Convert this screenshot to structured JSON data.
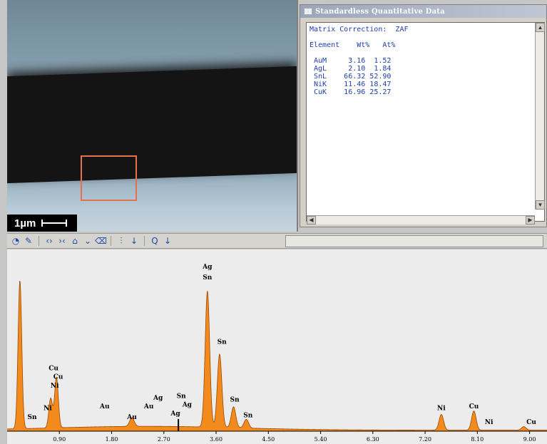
{
  "sem": {
    "scale_label": "1µm"
  },
  "quant": {
    "title": "Standardless Quantitative Data",
    "matrix_label": "Matrix Correction:",
    "matrix_value": "ZAF",
    "col_element": "Element",
    "col_wt": "Wt%",
    "col_at": "At%",
    "rows": [
      {
        "element": "AuM",
        "wt": "3.16",
        "at": "1.52"
      },
      {
        "element": "AgL",
        "wt": "2.10",
        "at": "1.84"
      },
      {
        "element": "SnL",
        "wt": "66.32",
        "at": "52.90"
      },
      {
        "element": "NiK",
        "wt": "11.46",
        "at": "18.47"
      },
      {
        "element": "CuK",
        "wt": "16.96",
        "at": "25.27"
      }
    ]
  },
  "toolbar": {
    "icons": [
      "acquire-icon",
      "brush-icon",
      "expand-icon",
      "contract-icon",
      "peak-up-icon",
      "peak-down-icon",
      "clear-icon",
      "marker-icon",
      "arrow-down-icon",
      "zoom-icon",
      "arrow-down-icon"
    ]
  },
  "chart_data": {
    "type": "area",
    "xlabel": "",
    "ylabel": "",
    "xlim": [
      0,
      9.3
    ],
    "x_ticks": [
      "0.90",
      "1.80",
      "2.70",
      "3.60",
      "4.50",
      "5.40",
      "6.30",
      "7.20",
      "8.10",
      "9.00"
    ],
    "x_tick_values": [
      0.9,
      1.8,
      2.7,
      3.6,
      4.5,
      5.4,
      6.3,
      7.2,
      8.1,
      9.0
    ],
    "peaks": [
      {
        "x": 0.22,
        "height": 0.85
      },
      {
        "x": 0.75,
        "height": 0.17
      },
      {
        "x": 0.85,
        "height": 0.29
      },
      {
        "x": 2.15,
        "height": 0.05
      },
      {
        "x": 3.45,
        "height": 0.78
      },
      {
        "x": 3.66,
        "height": 0.42
      },
      {
        "x": 3.9,
        "height": 0.12
      },
      {
        "x": 4.12,
        "height": 0.05
      },
      {
        "x": 7.48,
        "height": 0.09
      },
      {
        "x": 8.04,
        "height": 0.11
      },
      {
        "x": 8.9,
        "height": 0.02
      }
    ],
    "labels": [
      {
        "text": "Ag",
        "x": 3.45,
        "height": 0.93
      },
      {
        "text": "Sn",
        "x": 3.45,
        "height": 0.87
      },
      {
        "text": "Sn",
        "x": 3.7,
        "height": 0.5
      },
      {
        "text": "Sn",
        "x": 3.92,
        "height": 0.17
      },
      {
        "text": "Sn",
        "x": 4.15,
        "height": 0.08
      },
      {
        "text": "Cu",
        "x": 0.8,
        "height": 0.35
      },
      {
        "text": "Cu",
        "x": 0.88,
        "height": 0.3
      },
      {
        "text": "Ni",
        "x": 0.82,
        "height": 0.25
      },
      {
        "text": "Ni",
        "x": 0.7,
        "height": 0.12
      },
      {
        "text": "Sn",
        "x": 0.43,
        "height": 0.07
      },
      {
        "text": "Au",
        "x": 1.68,
        "height": 0.13
      },
      {
        "text": "Au",
        "x": 2.15,
        "height": 0.07
      },
      {
        "text": "Au",
        "x": 2.44,
        "height": 0.13
      },
      {
        "text": "Ag",
        "x": 2.6,
        "height": 0.18
      },
      {
        "text": "Sn",
        "x": 3.0,
        "height": 0.19
      },
      {
        "text": "Ag",
        "x": 3.1,
        "height": 0.14
      },
      {
        "text": "Ag",
        "x": 2.9,
        "height": 0.09
      },
      {
        "text": "Ni",
        "x": 7.48,
        "height": 0.12
      },
      {
        "text": "Cu",
        "x": 8.04,
        "height": 0.13
      },
      {
        "text": "Ni",
        "x": 8.3,
        "height": 0.04
      },
      {
        "text": "Cu",
        "x": 9.03,
        "height": 0.04
      }
    ],
    "cursor_x": 2.95,
    "fill_color": "#f28a1e",
    "line_color": "#9a4a00"
  }
}
